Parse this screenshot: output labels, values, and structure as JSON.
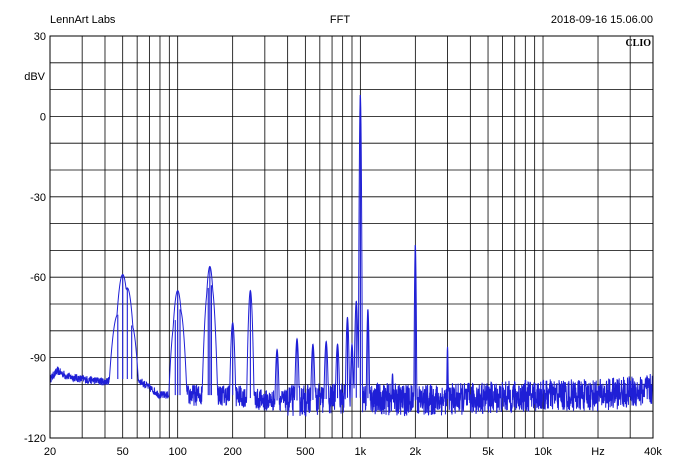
{
  "header": {
    "left": "LennArt Labs",
    "center": "FFT",
    "right": "2018-09-16 15.06.00",
    "logo": "CLIO"
  },
  "colors": {
    "trace": "#1f1fd6",
    "grid": "#000000",
    "background": "#ffffff"
  },
  "chart_data": {
    "type": "line",
    "title": "FFT",
    "xlabel": "Hz",
    "ylabel": "dBV",
    "xscale": "log",
    "xlim": [
      20,
      40000
    ],
    "ylim": [
      -120,
      30
    ],
    "grid": true,
    "x_ticks": [
      {
        "v": 20,
        "label": "20"
      },
      {
        "v": 50,
        "label": "50"
      },
      {
        "v": 100,
        "label": "100"
      },
      {
        "v": 200,
        "label": "200"
      },
      {
        "v": 500,
        "label": "500"
      },
      {
        "v": 1000,
        "label": "1k"
      },
      {
        "v": 2000,
        "label": "2k"
      },
      {
        "v": 5000,
        "label": "5k"
      },
      {
        "v": 10000,
        "label": "10k"
      },
      {
        "v": 40000,
        "label": "40k"
      }
    ],
    "y_ticks": [
      {
        "v": 30,
        "label": "30"
      },
      {
        "v": 0,
        "label": "0"
      },
      {
        "v": -30,
        "label": "-30"
      },
      {
        "v": -60,
        "label": "-60"
      },
      {
        "v": -90,
        "label": "-90"
      },
      {
        "v": -120,
        "label": "-120"
      }
    ],
    "series": [
      {
        "noise_floor": [
          [
            20,
            -98
          ],
          [
            22,
            -95
          ],
          [
            25,
            -97
          ],
          [
            30,
            -98
          ],
          [
            40,
            -99
          ],
          [
            45,
            -98
          ],
          [
            60,
            -98
          ],
          [
            80,
            -104
          ],
          [
            95,
            -104
          ],
          [
            120,
            -104
          ],
          [
            200,
            -104
          ],
          [
            300,
            -106
          ],
          [
            500,
            -106
          ],
          [
            800,
            -105
          ],
          [
            1000,
            -105
          ],
          [
            2000,
            -106
          ],
          [
            5000,
            -105
          ],
          [
            10000,
            -104
          ],
          [
            20000,
            -104
          ],
          [
            40000,
            -102
          ]
        ],
        "peaks": [
          {
            "f": 47,
            "db": -74,
            "w": 0.035
          },
          {
            "f": 50,
            "db": -59,
            "w": 0.03
          },
          {
            "f": 53,
            "db": -64,
            "w": 0.03
          },
          {
            "f": 56,
            "db": -78,
            "w": 0.03
          },
          {
            "f": 97,
            "db": -76,
            "w": 0.025
          },
          {
            "f": 100,
            "db": -65,
            "w": 0.025
          },
          {
            "f": 103,
            "db": -72,
            "w": 0.025
          },
          {
            "f": 147,
            "db": -64,
            "w": 0.02
          },
          {
            "f": 150,
            "db": -56,
            "w": 0.02
          },
          {
            "f": 153,
            "db": -63,
            "w": 0.02
          },
          {
            "f": 200,
            "db": -77,
            "w": 0.012
          },
          {
            "f": 250,
            "db": -65,
            "w": 0.012
          },
          {
            "f": 350,
            "db": -87,
            "w": 0.01
          },
          {
            "f": 450,
            "db": -83,
            "w": 0.01
          },
          {
            "f": 550,
            "db": -85,
            "w": 0.01
          },
          {
            "f": 650,
            "db": -84,
            "w": 0.01
          },
          {
            "f": 750,
            "db": -85,
            "w": 0.01
          },
          {
            "f": 850,
            "db": -75,
            "w": 0.008
          },
          {
            "f": 900,
            "db": -85,
            "w": 0.008
          },
          {
            "f": 950,
            "db": -69,
            "w": 0.008
          },
          {
            "f": 1000,
            "db": 8,
            "w": 0.004
          },
          {
            "f": 1100,
            "db": -72,
            "w": 0.006
          },
          {
            "f": 1500,
            "db": -96,
            "w": 0.006
          },
          {
            "f": 2000,
            "db": -48,
            "w": 0.004
          },
          {
            "f": 3000,
            "db": -86,
            "w": 0.004
          }
        ]
      }
    ]
  }
}
